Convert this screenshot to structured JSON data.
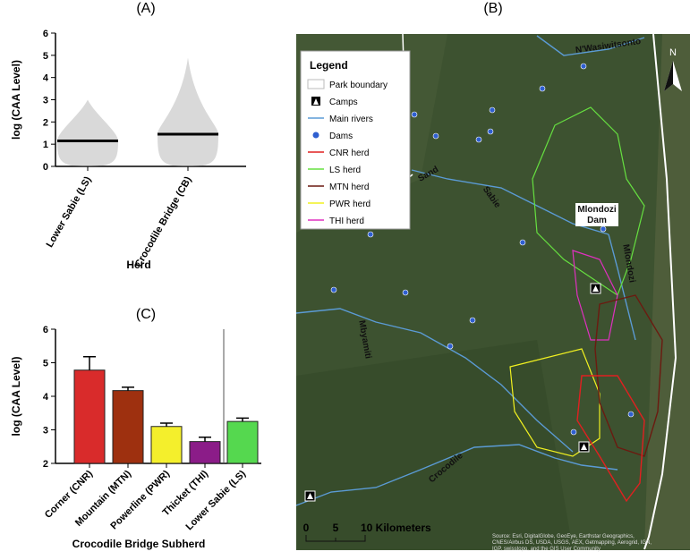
{
  "chart_data": [
    {
      "type": "strip",
      "panel": "(A)",
      "categories": [
        "Lower Sabie (LS)",
        "Crocodile Bridge (CB)"
      ],
      "values": [
        1.15,
        1.45
      ],
      "maxima": [
        3.0,
        4.9
      ],
      "color": "#aaaaaa",
      "xlabel": "Herd",
      "ylabel": "log (CAA Level)",
      "ylim": [
        0,
        6
      ],
      "yticks": [
        0,
        1,
        2,
        3,
        4,
        5,
        6
      ]
    },
    {
      "type": "bar",
      "panel": "(C)",
      "categories": [
        "Corner (CNR)",
        "Mountain (MTN)",
        "Powerline (PWR)",
        "Thicket (THI)",
        "Lower Sabie (LS)"
      ],
      "values": [
        4.78,
        4.17,
        3.1,
        2.65,
        3.25
      ],
      "errors": [
        0.4,
        0.1,
        0.1,
        0.13,
        0.1
      ],
      "colors": [
        "#d92b2b",
        "#9e300f",
        "#f4ef2c",
        "#8b1c88",
        "#55d84f"
      ],
      "xlabel": "Crocodile Bridge Subherd",
      "ylabel": "log (CAA Level)",
      "ylim": [
        2,
        6
      ],
      "yticks": [
        2,
        3,
        4,
        5,
        6
      ]
    }
  ],
  "map": {
    "panel": "(B)",
    "legend": {
      "title": "Legend",
      "items": [
        {
          "name": "Park boundary",
          "color": "#ffffff"
        },
        {
          "name": "Camps",
          "color": "#000000"
        },
        {
          "name": "Main rivers",
          "color": "#5b9bd5"
        },
        {
          "name": "Dams",
          "color": "#2f5fd0"
        },
        {
          "name": "CNR herd",
          "color": "#e02020"
        },
        {
          "name": "LS herd",
          "color": "#66e040"
        },
        {
          "name": "MTN herd",
          "color": "#6b1a10"
        },
        {
          "name": "PWR herd",
          "color": "#f0f020"
        },
        {
          "name": "THI herd",
          "color": "#e030c0"
        }
      ]
    },
    "places": [
      "N'Wasiwitsonto",
      "Sand",
      "Sabie",
      "Mlondozi",
      "Dam",
      "Mlondozi",
      "Mbyamiti",
      "Crocodile"
    ],
    "north": "N",
    "scale": [
      "0",
      "5",
      "10 Kilometers"
    ],
    "attribution": [
      "Source: Esri, DigitalGlobe, GeoEye, Earthstar Geographics,",
      "CNES/Airbus DS, USDA, USGS, AEX, Getmapping, Aerogrid, IGN,",
      "IGP, swisstopo, and the GIS User Community"
    ]
  }
}
